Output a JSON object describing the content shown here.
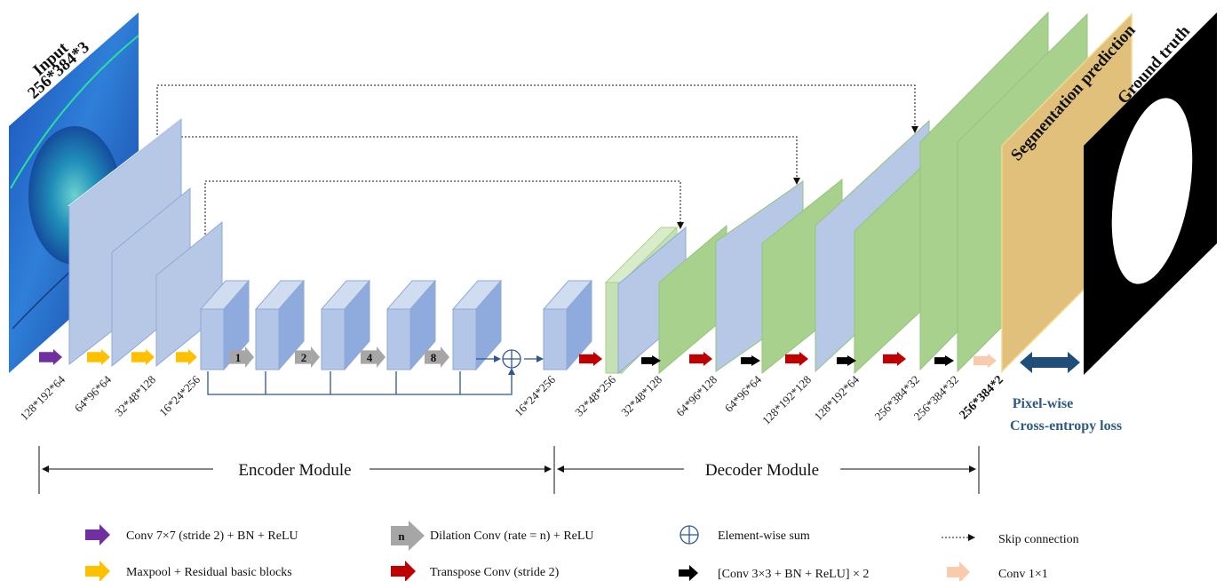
{
  "input_label": "Input",
  "input_size": "256*384*3",
  "ground_truth_label": "Ground truth",
  "segmentation_label": "Segmentation prediction",
  "encoder_dims": [
    "128*192*64",
    "64*96*64",
    "32*48*128",
    "16*24*256"
  ],
  "dilation_rates": [
    "1",
    "2",
    "4",
    "8"
  ],
  "bottleneck_dim": "16*24*256",
  "decoder_dims": [
    "32*48*256",
    "32*48*128",
    "64*96*128",
    "64*96*64",
    "128*192*128",
    "128*192*64",
    "256*384*32",
    "256*384*32"
  ],
  "output_dim": "256*384*2",
  "loss_line1": "Pixel-wise",
  "loss_line2": "Cross-entropy loss",
  "encoder_module": "Encoder Module",
  "decoder_module": "Decoder Module",
  "legend": {
    "conv7": "Conv 7×7 (stride 2) + BN + ReLU",
    "maxpool": "Maxpool + Residual basic blocks",
    "dilation_badge": "n",
    "dilation": "Dilation Conv (rate = n) + ReLU",
    "transpose": "Transpose Conv (stride 2)",
    "sum": "Element-wise sum",
    "conv3": "[Conv 3×3 + BN + ReLU] × 2",
    "skip": "Skip connection",
    "conv1": "Conv 1×1"
  },
  "colors": {
    "encoder_block": "#b4c6e7",
    "decoder_block": "#a9d18e",
    "prediction": "#e0c07a",
    "purple_arrow": "#7030a0",
    "orange_arrow": "#ffc000",
    "gray_arrow": "#a6a6a6",
    "red_arrow": "#c00000",
    "black_arrow": "#000000",
    "peach_arrow": "#f8cbad",
    "loss_arrow": "#1f4e79"
  }
}
